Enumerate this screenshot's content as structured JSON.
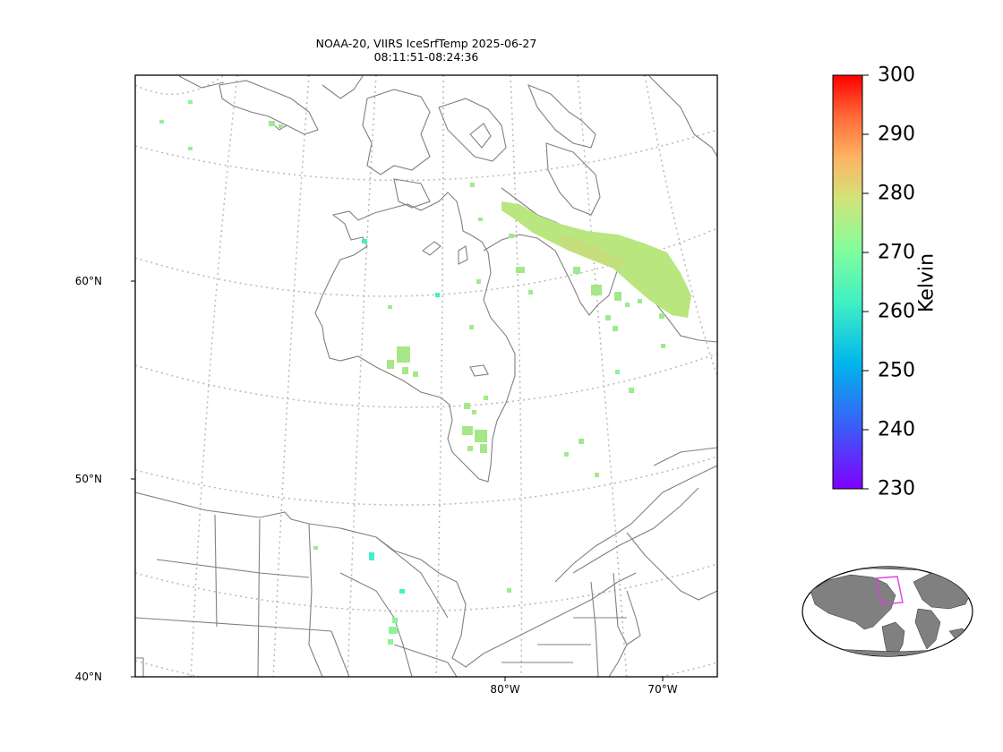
{
  "title": {
    "line1": "NOAA-20, VIIRS IceSrfTemp 2025-06-27",
    "line2": "08:11:51-08:24:36"
  },
  "map": {
    "region": "Hudson Bay / Eastern Canada",
    "lat_labels": [
      "60°N",
      "50°N",
      "40°N"
    ],
    "lon_labels": [
      "80°W",
      "70°W"
    ],
    "graticule_style": "dotted gray",
    "land_color": "#ffffff",
    "coastline_color": "#808080"
  },
  "colorbar": {
    "label": "Kelvin",
    "ticks": [
      "300",
      "290",
      "280",
      "270",
      "260",
      "250",
      "240",
      "230"
    ],
    "min": 230,
    "max": 300,
    "colormap": "rainbow"
  },
  "inset_globe": {
    "land_color": "#808080",
    "highlight_color": "#e040e0"
  },
  "swath_color": "#b5e77f"
}
